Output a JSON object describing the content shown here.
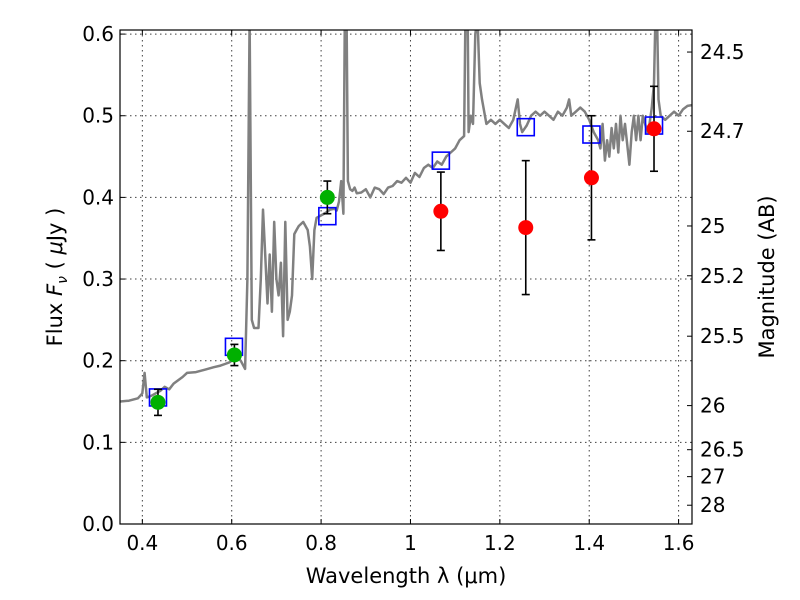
{
  "chart_data": {
    "type": "scatter",
    "xlabel": "Wavelength  λ (μm)",
    "ylabel_left": [
      "Flux  ",
      "F",
      "ν",
      "  ( ",
      "μ",
      "Jy )"
    ],
    "ylabel_right": "Magnitude (AB)",
    "xlim": [
      0.35,
      1.63
    ],
    "ylim": [
      0.0,
      0.605
    ],
    "x_ticks": [
      0.4,
      0.6,
      0.8,
      1.0,
      1.2,
      1.4,
      1.6
    ],
    "x_tick_labels": [
      "0.4",
      "0.6",
      "0.8",
      "1",
      "1.2",
      "1.4",
      "1.6"
    ],
    "y_ticks": [
      0.0,
      0.1,
      0.2,
      0.3,
      0.4,
      0.5,
      0.6
    ],
    "y_tick_labels": [
      "0.0",
      "0.1",
      "0.2",
      "0.3",
      "0.4",
      "0.5",
      "0.6"
    ],
    "right_ticks": [
      {
        "label": "24.5",
        "flux": 0.578
      },
      {
        "label": "24.7",
        "flux": 0.481
      },
      {
        "label": "25",
        "flux": 0.365
      },
      {
        "label": "25.2",
        "flux": 0.304
      },
      {
        "label": "25.5",
        "flux": 0.23
      },
      {
        "label": "26",
        "flux": 0.145
      },
      {
        "label": "26.5",
        "flux": 0.091
      },
      {
        "label": "27",
        "flux": 0.058
      },
      {
        "label": "28",
        "flux": 0.023
      }
    ],
    "grid": true,
    "series": [
      {
        "name": "model_spectrum",
        "kind": "line",
        "color": "#808080",
        "points": [
          [
            0.35,
            0.15
          ],
          [
            0.37,
            0.151
          ],
          [
            0.39,
            0.154
          ],
          [
            0.4,
            0.16
          ],
          [
            0.405,
            0.185
          ],
          [
            0.41,
            0.155
          ],
          [
            0.42,
            0.157
          ],
          [
            0.44,
            0.163
          ],
          [
            0.45,
            0.168
          ],
          [
            0.46,
            0.165
          ],
          [
            0.47,
            0.172
          ],
          [
            0.49,
            0.18
          ],
          [
            0.5,
            0.185
          ],
          [
            0.52,
            0.186
          ],
          [
            0.54,
            0.189
          ],
          [
            0.56,
            0.192
          ],
          [
            0.575,
            0.194
          ],
          [
            0.585,
            0.196
          ],
          [
            0.595,
            0.198
          ],
          [
            0.6,
            0.2
          ],
          [
            0.61,
            0.205
          ],
          [
            0.62,
            0.2
          ],
          [
            0.63,
            0.19
          ],
          [
            0.635,
            0.3
          ],
          [
            0.64,
            0.62
          ],
          [
            0.645,
            0.25
          ],
          [
            0.65,
            0.24
          ],
          [
            0.66,
            0.24
          ],
          [
            0.665,
            0.3
          ],
          [
            0.67,
            0.385
          ],
          [
            0.675,
            0.33
          ],
          [
            0.68,
            0.27
          ],
          [
            0.685,
            0.33
          ],
          [
            0.69,
            0.26
          ],
          [
            0.695,
            0.37
          ],
          [
            0.7,
            0.3
          ],
          [
            0.705,
            0.28
          ],
          [
            0.71,
            0.32
          ],
          [
            0.715,
            0.23
          ],
          [
            0.72,
            0.37
          ],
          [
            0.725,
            0.25
          ],
          [
            0.73,
            0.26
          ],
          [
            0.735,
            0.28
          ],
          [
            0.74,
            0.355
          ],
          [
            0.745,
            0.36
          ],
          [
            0.75,
            0.365
          ],
          [
            0.76,
            0.37
          ],
          [
            0.77,
            0.36
          ],
          [
            0.775,
            0.34
          ],
          [
            0.78,
            0.3
          ],
          [
            0.785,
            0.36
          ],
          [
            0.79,
            0.375
          ],
          [
            0.8,
            0.378
          ],
          [
            0.81,
            0.381
          ],
          [
            0.82,
            0.385
          ],
          [
            0.83,
            0.386
          ],
          [
            0.835,
            0.384
          ],
          [
            0.84,
            0.395
          ],
          [
            0.845,
            0.42
          ],
          [
            0.85,
            0.38
          ],
          [
            0.853,
            0.62
          ],
          [
            0.857,
            0.62
          ],
          [
            0.86,
            0.42
          ],
          [
            0.865,
            0.41
          ],
          [
            0.87,
            0.408
          ],
          [
            0.875,
            0.412
          ],
          [
            0.88,
            0.405
          ],
          [
            0.89,
            0.406
          ],
          [
            0.9,
            0.41
          ],
          [
            0.91,
            0.4
          ],
          [
            0.92,
            0.412
          ],
          [
            0.93,
            0.41
          ],
          [
            0.94,
            0.404
          ],
          [
            0.95,
            0.412
          ],
          [
            0.96,
            0.414
          ],
          [
            0.97,
            0.42
          ],
          [
            0.98,
            0.418
          ],
          [
            0.99,
            0.424
          ],
          [
            1.0,
            0.418
          ],
          [
            1.01,
            0.43
          ],
          [
            1.02,
            0.425
          ],
          [
            1.03,
            0.436
          ],
          [
            1.04,
            0.44
          ],
          [
            1.05,
            0.436
          ],
          [
            1.06,
            0.444
          ],
          [
            1.07,
            0.44
          ],
          [
            1.08,
            0.45
          ],
          [
            1.09,
            0.455
          ],
          [
            1.1,
            0.46
          ],
          [
            1.11,
            0.47
          ],
          [
            1.12,
            0.475
          ],
          [
            1.123,
            0.62
          ],
          [
            1.128,
            0.62
          ],
          [
            1.13,
            0.48
          ],
          [
            1.135,
            0.5
          ],
          [
            1.14,
            0.49
          ],
          [
            1.145,
            0.6
          ],
          [
            1.15,
            0.62
          ],
          [
            1.155,
            0.54
          ],
          [
            1.16,
            0.52
          ],
          [
            1.17,
            0.49
          ],
          [
            1.18,
            0.495
          ],
          [
            1.19,
            0.49
          ],
          [
            1.2,
            0.495
          ],
          [
            1.21,
            0.49
          ],
          [
            1.22,
            0.485
          ],
          [
            1.23,
            0.495
          ],
          [
            1.24,
            0.52
          ],
          [
            1.245,
            0.49
          ],
          [
            1.25,
            0.48
          ],
          [
            1.26,
            0.488
          ],
          [
            1.27,
            0.5
          ],
          [
            1.28,
            0.505
          ],
          [
            1.29,
            0.5
          ],
          [
            1.3,
            0.505
          ],
          [
            1.31,
            0.5
          ],
          [
            1.32,
            0.495
          ],
          [
            1.33,
            0.505
          ],
          [
            1.34,
            0.5
          ],
          [
            1.35,
            0.51
          ],
          [
            1.355,
            0.52
          ],
          [
            1.36,
            0.5
          ],
          [
            1.37,
            0.505
          ],
          [
            1.38,
            0.51
          ],
          [
            1.39,
            0.505
          ],
          [
            1.4,
            0.495
          ],
          [
            1.41,
            0.48
          ],
          [
            1.42,
            0.47
          ],
          [
            1.425,
            0.46
          ],
          [
            1.43,
            0.49
          ],
          [
            1.435,
            0.445
          ],
          [
            1.44,
            0.47
          ],
          [
            1.445,
            0.45
          ],
          [
            1.45,
            0.485
          ],
          [
            1.455,
            0.46
          ],
          [
            1.46,
            0.49
          ],
          [
            1.465,
            0.455
          ],
          [
            1.47,
            0.5
          ],
          [
            1.475,
            0.47
          ],
          [
            1.48,
            0.49
          ],
          [
            1.485,
            0.465
          ],
          [
            1.49,
            0.44
          ],
          [
            1.495,
            0.48
          ],
          [
            1.5,
            0.5
          ],
          [
            1.505,
            0.47
          ],
          [
            1.51,
            0.5
          ],
          [
            1.515,
            0.47
          ],
          [
            1.52,
            0.5
          ],
          [
            1.525,
            0.49
          ],
          [
            1.53,
            0.48
          ],
          [
            1.535,
            0.49
          ],
          [
            1.54,
            0.51
          ],
          [
            1.545,
            0.54
          ],
          [
            1.548,
            0.62
          ],
          [
            1.552,
            0.62
          ],
          [
            1.555,
            0.52
          ],
          [
            1.56,
            0.5
          ],
          [
            1.57,
            0.495
          ],
          [
            1.58,
            0.5
          ],
          [
            1.59,
            0.505
          ],
          [
            1.6,
            0.5
          ],
          [
            1.61,
            0.508
          ],
          [
            1.62,
            0.512
          ],
          [
            1.63,
            0.513
          ]
        ]
      },
      {
        "name": "model_photometry",
        "kind": "open_square",
        "color": "#0000ff",
        "points": [
          [
            0.435,
            0.155
          ],
          [
            0.605,
            0.217
          ],
          [
            0.814,
            0.377
          ],
          [
            1.068,
            0.445
          ],
          [
            1.258,
            0.486
          ],
          [
            1.405,
            0.477
          ],
          [
            1.545,
            0.488
          ]
        ]
      },
      {
        "name": "optical_detections",
        "kind": "point",
        "color": "#00b000",
        "points": [
          [
            0.435,
            0.149
          ],
          [
            0.606,
            0.207
          ],
          [
            0.814,
            0.4
          ]
        ],
        "errors": [
          0.016,
          0.013,
          0.02
        ]
      },
      {
        "name": "nir_detections",
        "kind": "point",
        "color": "#ff0000",
        "points": [
          [
            1.068,
            0.383
          ],
          [
            1.258,
            0.363
          ],
          [
            1.405,
            0.424
          ],
          [
            1.545,
            0.484
          ]
        ],
        "errors": [
          0.048,
          0.082,
          0.076,
          0.052
        ]
      }
    ]
  }
}
